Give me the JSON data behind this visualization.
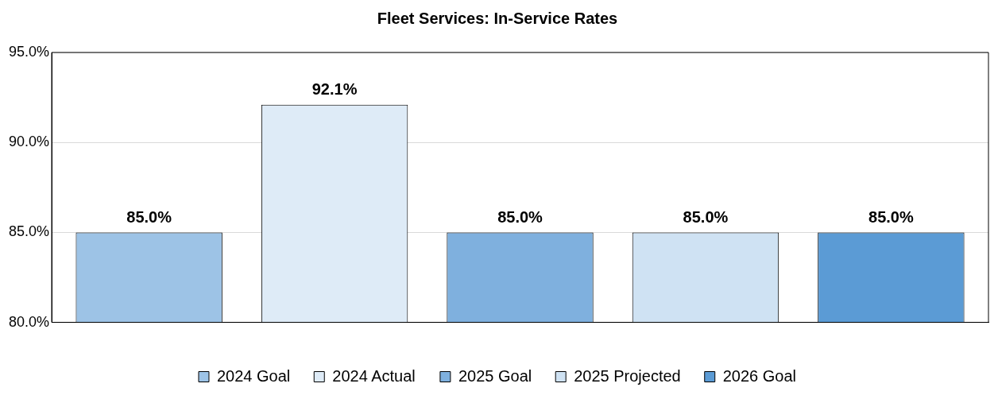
{
  "chart_data": {
    "type": "bar",
    "title": "Fleet Services: In-Service Rates",
    "categories": [
      null
    ],
    "series": [
      {
        "name": "2024 Goal",
        "color": "#9dc3e6",
        "values": [
          85
        ],
        "value_labels": [
          "85.0%"
        ]
      },
      {
        "name": "2024 Actual",
        "color": "#deebf7",
        "values": [
          92.1
        ],
        "value_labels": [
          "92.1%"
        ]
      },
      {
        "name": "2025 Goal",
        "color": "#7fb0de",
        "values": [
          85
        ],
        "value_labels": [
          "85.0%"
        ]
      },
      {
        "name": "2025 Projected",
        "color": "#cfe2f3",
        "values": [
          85
        ],
        "value_labels": [
          "85.0%"
        ]
      },
      {
        "name": "2026 Goal",
        "color": "#5b9bd5",
        "values": [
          85
        ],
        "value_labels": [
          "85.0%"
        ]
      }
    ],
    "ylim": [
      80,
      95
    ],
    "yticks": [
      {
        "value": 80,
        "label": "80.0%"
      },
      {
        "value": 85,
        "label": "85.0%"
      },
      {
        "value": 90,
        "label": "90.0%"
      },
      {
        "value": 95,
        "label": "95.0%"
      }
    ],
    "grid": "y",
    "legend": "bottom"
  }
}
